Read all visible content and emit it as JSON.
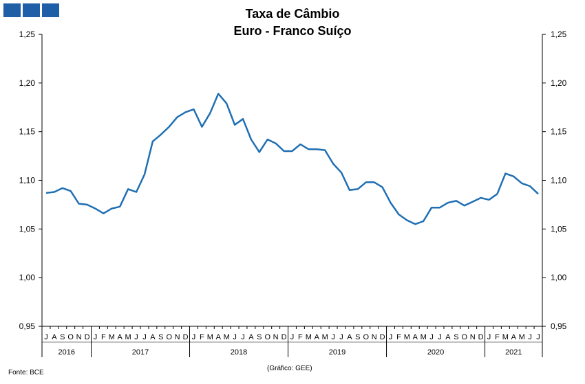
{
  "header": {
    "title_line1": "Taxa de Câmbio",
    "title_line2": "Euro - Franco Suíço",
    "logo_color": "#1f5fa8"
  },
  "footer": {
    "source": "Fonte: BCE",
    "credit": "(Gráfico: GEE)"
  },
  "chart_data": {
    "type": "line",
    "title": "Taxa de Câmbio Euro - Franco Suíço",
    "xlabel": "",
    "ylabel": "",
    "ylim": [
      0.95,
      1.25
    ],
    "yticks": [
      "0,95",
      "1,00",
      "1,05",
      "1,10",
      "1,15",
      "1,20",
      "1,25"
    ],
    "y_axis_right": true,
    "grid": false,
    "line_color": "#1f6fb4",
    "month_labels": [
      "J",
      "A",
      "S",
      "O",
      "N",
      "D",
      "J",
      "F",
      "M",
      "A",
      "M",
      "J",
      "J",
      "A",
      "S",
      "O",
      "N",
      "D",
      "J",
      "F",
      "M",
      "A",
      "M",
      "J",
      "J",
      "A",
      "S",
      "O",
      "N",
      "D",
      "J",
      "F",
      "M",
      "A",
      "M",
      "J",
      "J",
      "A",
      "S",
      "O",
      "N",
      "D",
      "J",
      "F",
      "M",
      "A",
      "M",
      "J",
      "J",
      "A",
      "S",
      "O",
      "N",
      "D",
      "J",
      "F",
      "M",
      "A",
      "M",
      "J",
      "J"
    ],
    "years": [
      {
        "label": "2016",
        "months": 6
      },
      {
        "label": "2017",
        "months": 12
      },
      {
        "label": "2018",
        "months": 12
      },
      {
        "label": "2019",
        "months": 12
      },
      {
        "label": "2020",
        "months": 12
      },
      {
        "label": "2021",
        "months": 7
      }
    ],
    "series": [
      {
        "values": [
          1.087,
          1.088,
          1.092,
          1.089,
          1.076,
          1.075,
          1.071,
          1.066,
          1.071,
          1.073,
          1.091,
          1.088,
          1.106,
          1.14,
          1.147,
          1.155,
          1.165,
          1.17,
          1.173,
          1.155,
          1.169,
          1.189,
          1.179,
          1.157,
          1.163,
          1.142,
          1.129,
          1.142,
          1.138,
          1.13,
          1.13,
          1.137,
          1.132,
          1.132,
          1.131,
          1.117,
          1.108,
          1.09,
          1.091,
          1.098,
          1.098,
          1.093,
          1.077,
          1.065,
          1.059,
          1.055,
          1.058,
          1.072,
          1.072,
          1.077,
          1.079,
          1.074,
          1.078,
          1.082,
          1.08,
          1.086,
          1.107,
          1.104,
          1.097,
          1.094,
          1.086
        ]
      }
    ]
  }
}
